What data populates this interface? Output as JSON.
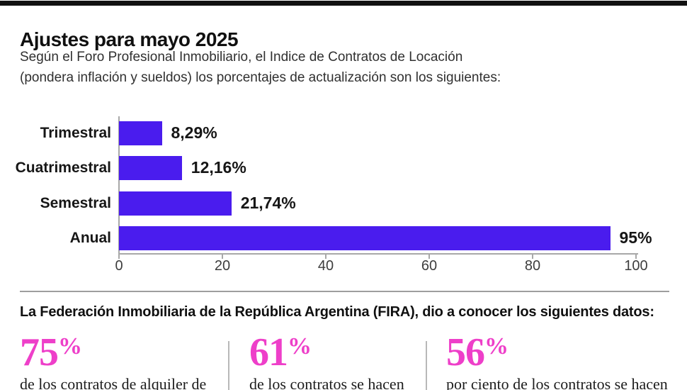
{
  "header": {
    "title": "Ajustes para mayo 2025",
    "subtitle_line1": "Según el Foro Profesional Inmobiliario, el Indice de Contratos de Locación",
    "subtitle_line2": "(pondera inflación y sueldos) los porcentajes de actualización son los siguientes:"
  },
  "chart_data": {
    "type": "bar",
    "orientation": "horizontal",
    "categories": [
      "Trimestral",
      "Cuatrimestral",
      "Semestral",
      "Anual"
    ],
    "values": [
      8.29,
      12.16,
      21.74,
      95
    ],
    "value_labels": [
      "8,29%",
      "12,16%",
      "21,74%",
      "95%"
    ],
    "x_ticks": [
      "0",
      "20",
      "40",
      "60",
      "80",
      "100"
    ],
    "xlim": [
      0,
      100
    ],
    "grid": false,
    "legend": false,
    "bar_color": "#4a1cee",
    "axis_color": "#a8a8a8"
  },
  "footer": {
    "heading": "La Federación Inmobiliaria de la República Argentina (FIRA), dio a conocer los siguientes datos:",
    "accent_color": "#ee3fc9",
    "stats": [
      {
        "value": "75",
        "unit": "%",
        "description": "de los contratos de alquiler de"
      },
      {
        "value": "61",
        "unit": "%",
        "description": "de los contratos se hacen"
      },
      {
        "value": "56",
        "unit": "%",
        "description": "por ciento de los contratos se hacen"
      }
    ]
  }
}
